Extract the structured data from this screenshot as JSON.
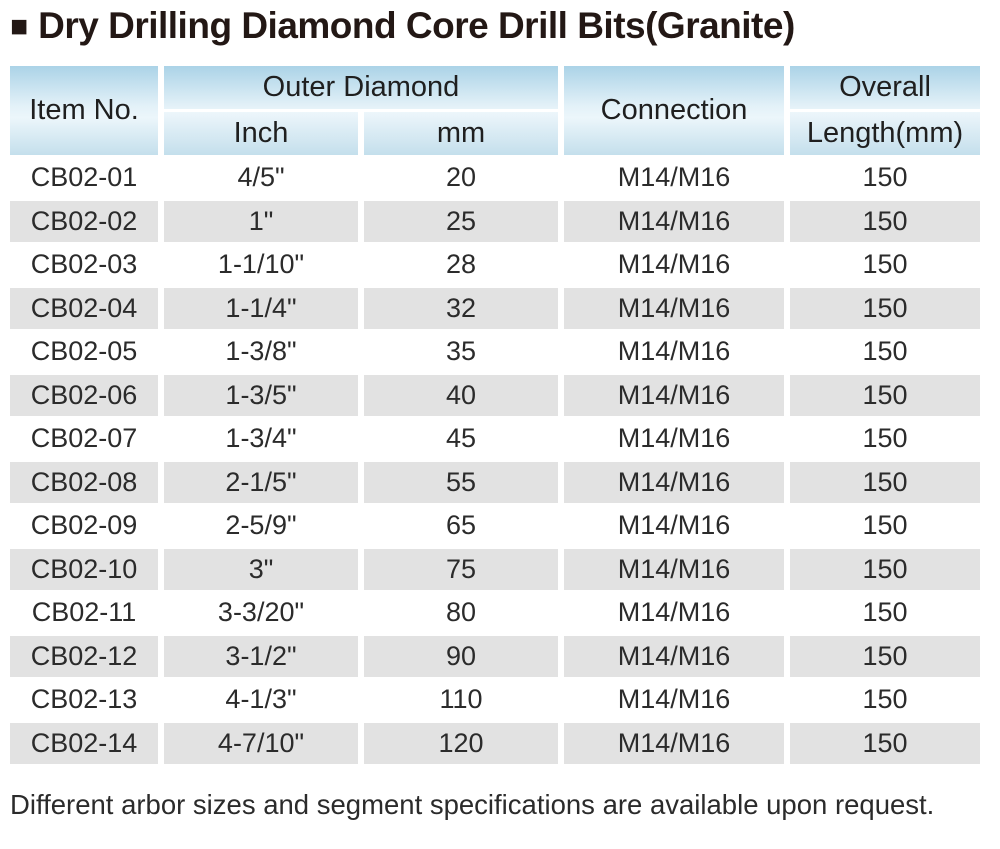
{
  "title": {
    "bullet": "■",
    "text": "Dry Drilling Diamond Core Drill Bits(Granite)"
  },
  "table": {
    "headers": {
      "item_no": "Item No.",
      "outer_diamond": "Outer Diamond",
      "inch": "Inch",
      "mm": "mm",
      "connection": "Connection",
      "overall_line1": "Overall",
      "overall_line2": "Length(mm)"
    },
    "rows": [
      {
        "item_no": "CB02-01",
        "inch": "4/5\"",
        "mm": "20",
        "connection": "M14/M16",
        "length": "150"
      },
      {
        "item_no": "CB02-02",
        "inch": "1\"",
        "mm": "25",
        "connection": "M14/M16",
        "length": "150"
      },
      {
        "item_no": "CB02-03",
        "inch": "1-1/10\"",
        "mm": "28",
        "connection": "M14/M16",
        "length": "150"
      },
      {
        "item_no": "CB02-04",
        "inch": "1-1/4\"",
        "mm": "32",
        "connection": "M14/M16",
        "length": "150"
      },
      {
        "item_no": "CB02-05",
        "inch": "1-3/8\"",
        "mm": "35",
        "connection": "M14/M16",
        "length": "150"
      },
      {
        "item_no": "CB02-06",
        "inch": "1-3/5\"",
        "mm": "40",
        "connection": "M14/M16",
        "length": "150"
      },
      {
        "item_no": "CB02-07",
        "inch": "1-3/4\"",
        "mm": "45",
        "connection": "M14/M16",
        "length": "150"
      },
      {
        "item_no": "CB02-08",
        "inch": "2-1/5\"",
        "mm": "55",
        "connection": "M14/M16",
        "length": "150"
      },
      {
        "item_no": "CB02-09",
        "inch": "2-5/9\"",
        "mm": "65",
        "connection": "M14/M16",
        "length": "150"
      },
      {
        "item_no": "CB02-10",
        "inch": "3\"",
        "mm": "75",
        "connection": "M14/M16",
        "length": "150"
      },
      {
        "item_no": "CB02-11",
        "inch": "3-3/20\"",
        "mm": "80",
        "connection": "M14/M16",
        "length": "150"
      },
      {
        "item_no": "CB02-12",
        "inch": "3-1/2\"",
        "mm": "90",
        "connection": "M14/M16",
        "length": "150"
      },
      {
        "item_no": "CB02-13",
        "inch": "4-1/3\"",
        "mm": "110",
        "connection": "M14/M16",
        "length": "150"
      },
      {
        "item_no": "CB02-14",
        "inch": "4-7/10\"",
        "mm": "120",
        "connection": "M14/M16",
        "length": "150"
      }
    ]
  },
  "footer": {
    "note": "Different arbor sizes and segment specifications are available upon request."
  },
  "colors": {
    "header_blue_top": "#abd3e7",
    "header_blue_mid": "#ecf6fb",
    "header_blue_bottom": "#c4dfec",
    "row_stripe": "#e2e2e2",
    "body_text": "#2b2b2b",
    "title_text": "#231815"
  }
}
